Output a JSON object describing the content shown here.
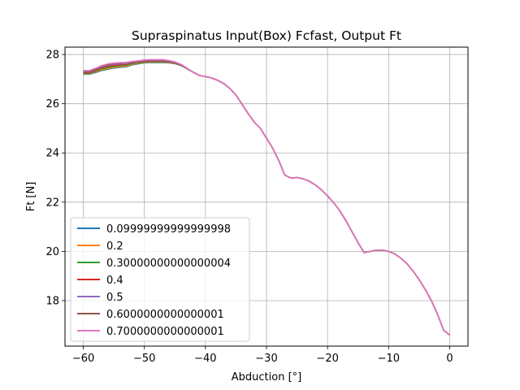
{
  "chart_data": {
    "type": "line",
    "title": "Supraspinatus Input(Box) Fcfast, Output Ft",
    "xlabel": "Abduction [°]",
    "ylabel": "Ft [N]",
    "xlim": [
      -63,
      3
    ],
    "ylim": [
      16.15,
      28.3
    ],
    "xticks": [
      -60,
      -50,
      -40,
      -30,
      -20,
      -10,
      0
    ],
    "yticks": [
      18,
      20,
      22,
      24,
      26,
      28
    ],
    "grid": true,
    "legend_position": "lower-left",
    "x": [
      -60,
      -59,
      -58,
      -57,
      -56,
      -55,
      -54,
      -53,
      -52,
      -51,
      -50,
      -49,
      -48,
      -47,
      -46,
      -45,
      -44,
      -43,
      -42,
      -41,
      -40,
      -39,
      -38,
      -37,
      -36,
      -35,
      -34,
      -33,
      -32,
      -31,
      -30,
      -29,
      -28,
      -27,
      -26,
      -25,
      -24,
      -23,
      -22,
      -21,
      -20,
      -19,
      -18,
      -17,
      -16,
      -15,
      -14,
      -13,
      -12,
      -11,
      -10,
      -9,
      -8,
      -7,
      -6,
      -5,
      -4,
      -3,
      -2,
      -1,
      0
    ],
    "series": [
      {
        "name": "0.09999999999999998",
        "color": "#1f77b4",
        "values": [
          27.2,
          27.2,
          27.27,
          27.35,
          27.4,
          27.45,
          27.48,
          27.5,
          27.58,
          27.62,
          27.66,
          27.67,
          27.67,
          27.67,
          27.66,
          27.63,
          27.55,
          27.42,
          27.28,
          27.15,
          27.1,
          27.05,
          26.95,
          26.82,
          26.62,
          26.35,
          25.98,
          25.6,
          25.25,
          25.0,
          24.6,
          24.2,
          23.7,
          23.1,
          22.98,
          23.0,
          22.95,
          22.85,
          22.7,
          22.5,
          22.25,
          21.98,
          21.65,
          21.25,
          20.8,
          20.35,
          19.95,
          20.0,
          20.05,
          20.05,
          20.0,
          19.9,
          19.72,
          19.5,
          19.2,
          18.85,
          18.45,
          18.0,
          17.45,
          16.8,
          16.6
        ]
      },
      {
        "name": "0.2",
        "color": "#ff7f0e",
        "values": [
          27.22,
          27.22,
          27.3,
          27.38,
          27.43,
          27.48,
          27.51,
          27.53,
          27.6,
          27.64,
          27.68,
          27.69,
          27.69,
          27.69,
          27.68,
          27.64,
          27.56,
          27.42,
          27.28,
          27.15,
          27.1,
          27.05,
          26.95,
          26.82,
          26.62,
          26.35,
          25.98,
          25.6,
          25.25,
          25.0,
          24.6,
          24.2,
          23.7,
          23.1,
          22.98,
          23.0,
          22.95,
          22.85,
          22.7,
          22.5,
          22.25,
          21.98,
          21.65,
          21.25,
          20.8,
          20.35,
          19.95,
          20.0,
          20.05,
          20.05,
          20.0,
          19.9,
          19.72,
          19.5,
          19.2,
          18.85,
          18.45,
          18.0,
          17.45,
          16.8,
          16.6
        ]
      },
      {
        "name": "0.30000000000000004",
        "color": "#2ca02c",
        "values": [
          27.24,
          27.24,
          27.33,
          27.42,
          27.47,
          27.52,
          27.55,
          27.57,
          27.63,
          27.66,
          27.7,
          27.71,
          27.71,
          27.71,
          27.7,
          27.65,
          27.57,
          27.42,
          27.28,
          27.15,
          27.1,
          27.05,
          26.95,
          26.82,
          26.62,
          26.35,
          25.98,
          25.6,
          25.25,
          25.0,
          24.6,
          24.2,
          23.7,
          23.1,
          22.98,
          23.0,
          22.95,
          22.85,
          22.7,
          22.5,
          22.25,
          21.98,
          21.65,
          21.25,
          20.8,
          20.35,
          19.95,
          20.0,
          20.05,
          20.05,
          20.0,
          19.9,
          19.72,
          19.5,
          19.2,
          18.85,
          18.45,
          18.0,
          17.45,
          16.8,
          16.6
        ]
      },
      {
        "name": "0.4",
        "color": "#d62728",
        "values": [
          27.27,
          27.27,
          27.36,
          27.46,
          27.52,
          27.56,
          27.59,
          27.6,
          27.66,
          27.69,
          27.72,
          27.73,
          27.73,
          27.73,
          27.71,
          27.66,
          27.58,
          27.43,
          27.28,
          27.15,
          27.1,
          27.05,
          26.95,
          26.82,
          26.62,
          26.35,
          25.98,
          25.6,
          25.25,
          25.0,
          24.6,
          24.2,
          23.7,
          23.1,
          22.98,
          23.0,
          22.95,
          22.85,
          22.7,
          22.5,
          22.25,
          21.98,
          21.65,
          21.25,
          20.8,
          20.35,
          19.95,
          20.0,
          20.05,
          20.05,
          20.0,
          19.9,
          19.72,
          19.5,
          19.2,
          18.85,
          18.45,
          18.0,
          17.45,
          16.8,
          16.6
        ]
      },
      {
        "name": "0.5",
        "color": "#9467bd",
        "values": [
          27.3,
          27.3,
          27.39,
          27.5,
          27.56,
          27.6,
          27.62,
          27.63,
          27.68,
          27.71,
          27.74,
          27.75,
          27.75,
          27.75,
          27.72,
          27.67,
          27.59,
          27.43,
          27.28,
          27.15,
          27.1,
          27.05,
          26.95,
          26.82,
          26.62,
          26.35,
          25.98,
          25.6,
          25.25,
          25.0,
          24.6,
          24.2,
          23.7,
          23.1,
          22.98,
          23.0,
          22.95,
          22.85,
          22.7,
          22.5,
          22.25,
          21.98,
          21.65,
          21.25,
          20.8,
          20.35,
          19.95,
          20.0,
          20.05,
          20.05,
          20.0,
          19.9,
          19.72,
          19.5,
          19.2,
          18.85,
          18.45,
          18.0,
          17.45,
          16.8,
          16.6
        ]
      },
      {
        "name": "0.6000000000000001",
        "color": "#8c564b",
        "values": [
          27.32,
          27.32,
          27.41,
          27.53,
          27.59,
          27.63,
          27.65,
          27.66,
          27.7,
          27.73,
          27.76,
          27.77,
          27.77,
          27.77,
          27.74,
          27.68,
          27.6,
          27.44,
          27.28,
          27.15,
          27.1,
          27.05,
          26.95,
          26.82,
          26.62,
          26.35,
          25.98,
          25.6,
          25.25,
          25.0,
          24.6,
          24.2,
          23.7,
          23.1,
          22.98,
          23.0,
          22.95,
          22.85,
          22.7,
          22.5,
          22.25,
          21.98,
          21.65,
          21.25,
          20.8,
          20.35,
          19.95,
          20.0,
          20.05,
          20.05,
          20.0,
          19.9,
          19.72,
          19.5,
          19.2,
          18.85,
          18.45,
          18.0,
          17.45,
          16.8,
          16.6
        ]
      },
      {
        "name": "0.7000000000000001",
        "color": "#e377c2",
        "values": [
          27.35,
          27.35,
          27.44,
          27.55,
          27.62,
          27.65,
          27.67,
          27.68,
          27.72,
          27.75,
          27.78,
          27.79,
          27.79,
          27.79,
          27.76,
          27.7,
          27.6,
          27.44,
          27.28,
          27.15,
          27.1,
          27.05,
          26.95,
          26.82,
          26.62,
          26.35,
          25.98,
          25.6,
          25.25,
          25.0,
          24.6,
          24.2,
          23.7,
          23.1,
          22.98,
          23.0,
          22.95,
          22.85,
          22.7,
          22.5,
          22.25,
          21.98,
          21.65,
          21.25,
          20.8,
          20.35,
          19.95,
          20.0,
          20.05,
          20.05,
          20.0,
          19.9,
          19.72,
          19.5,
          19.2,
          18.85,
          18.45,
          18.0,
          17.45,
          16.8,
          16.6
        ]
      }
    ]
  }
}
